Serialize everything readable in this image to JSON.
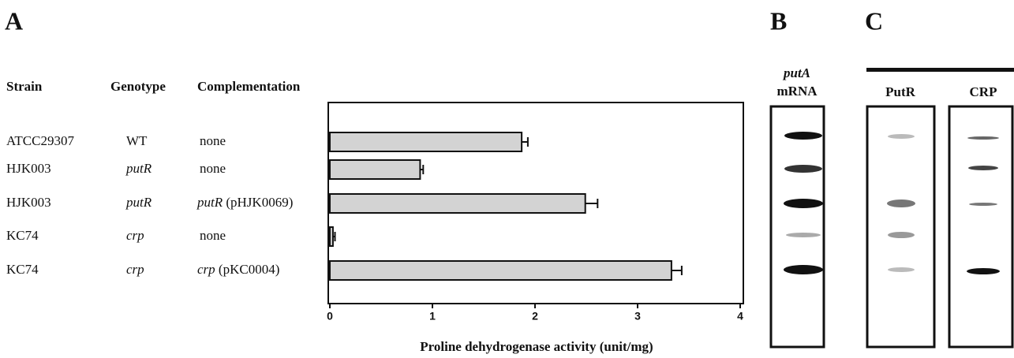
{
  "panels": {
    "a": "A",
    "b": "B",
    "c": "C"
  },
  "table": {
    "headers": [
      "Strain",
      "Genotype",
      "Complementation"
    ],
    "rows": [
      {
        "strain": "ATCC29307",
        "genotype": "WT",
        "complementation": {
          "text": "none"
        }
      },
      {
        "strain": "HJK003",
        "genotype": "putR",
        "complementation": {
          "text": "none"
        }
      },
      {
        "strain": "HJK003",
        "genotype": "putR",
        "complementation": {
          "gene": "putR",
          "plasmid": "(pHJK0069)"
        }
      },
      {
        "strain": "KC74",
        "genotype": "crp",
        "complementation": {
          "text": "none"
        }
      },
      {
        "strain": "KC74",
        "genotype": "crp",
        "complementation": {
          "gene": "crp",
          "plasmid": "(pKC0004)"
        }
      }
    ]
  },
  "chart_data": {
    "type": "hbar",
    "x_label": "Proline dehydrogenase activity (unit/mg)",
    "values": [
      1.87,
      0.88,
      2.49,
      0.03,
      3.33
    ],
    "errors": [
      0.06,
      0.03,
      0.12,
      0.02,
      0.1
    ],
    "color": "#d3d3d3",
    "xlim": [
      0,
      4
    ],
    "xticks": [
      0,
      1,
      2,
      3,
      4
    ]
  },
  "blot_b": {
    "gene": "putA",
    "label": "mRNA"
  },
  "blot_c": {
    "headers": [
      "PutR",
      "CRP"
    ]
  }
}
